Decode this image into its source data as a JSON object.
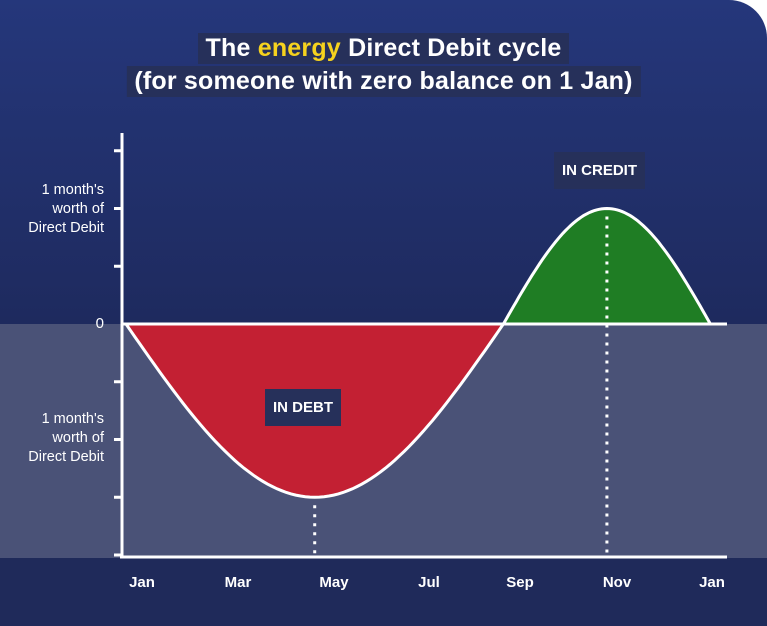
{
  "title": {
    "line1_prefix": "The",
    "line1_highlight": "energy",
    "line1_suffix": "Direct Debit cycle",
    "line2": "(for someone with zero balance on 1 Jan)"
  },
  "chart_data": {
    "type": "area",
    "title": "The energy Direct Debit cycle (for someone with zero balance on 1 Jan)",
    "x_ticks": [
      "Jan",
      "Mar",
      "May",
      "Jul",
      "Sep",
      "Nov",
      "Jan"
    ],
    "y_tick_labels": {
      "positive": [
        "1 month's",
        "worth of",
        "Direct Debit"
      ],
      "zero": "0",
      "negative": [
        "1 month's",
        "worth of",
        "Direct Debit"
      ]
    },
    "unit": "months' worth of Direct Debit",
    "ylim": [
      -2,
      2
    ],
    "series": [
      {
        "curve": "sine",
        "amplitude_below_zero": -1.5,
        "amplitude_above_zero": 1,
        "minimum_month": 4.75,
        "crossing_month": 7.75,
        "maximum_month": 10.7,
        "end_month": 12
      }
    ],
    "regions": [
      {
        "label": "IN DEBT",
        "color": "#c32033"
      },
      {
        "label": "IN CREDIT",
        "color": "#1f7d24"
      }
    ],
    "grid": false
  },
  "colors": {
    "background_top": "#25377b",
    "background_bottom": "#1e2a5e",
    "lower_panel": "#4a5277",
    "axis_strip": "#1f2a5a",
    "title_box": "#26305a",
    "highlight": "#f5d21e",
    "debt": "#c32033",
    "credit": "#1f7d24"
  }
}
